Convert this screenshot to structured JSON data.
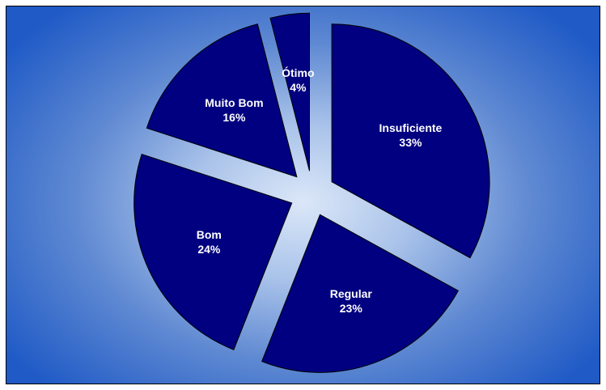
{
  "chart_data": {
    "type": "pie",
    "title": "",
    "slices": [
      {
        "label": "Insuficiente",
        "value": 33,
        "pct_label": "33%"
      },
      {
        "label": "Regular",
        "value": 23,
        "pct_label": "23%"
      },
      {
        "label": "Bom",
        "value": 24,
        "pct_label": "24%"
      },
      {
        "label": "Muito Bom",
        "value": 16,
        "pct_label": "16%"
      },
      {
        "label": "Ótimo",
        "value": 4,
        "pct_label": "4%"
      }
    ],
    "exploded": true,
    "slice_color": "#000080",
    "label_color": "#ffffff",
    "background_gradient": [
      "#dbe7f8",
      "#1f5ac6"
    ]
  }
}
